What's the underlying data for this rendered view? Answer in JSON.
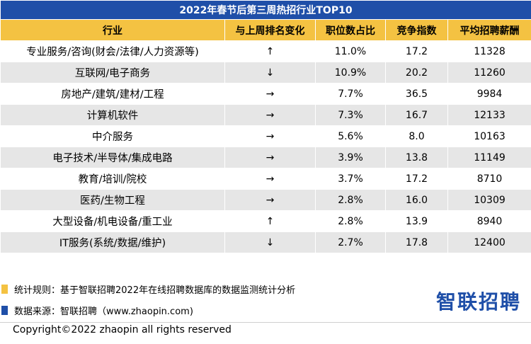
{
  "table": {
    "title": "2022年春节后第三周热招行业TOP10",
    "headers": [
      "行业",
      "与上周排名变化",
      "职位数占比",
      "竞争指数",
      "平均招聘薪酬"
    ],
    "rows": [
      [
        "专业服务/咨询(财会/法律/人力资源等)",
        "↑",
        "11.0%",
        "17.2",
        "11328"
      ],
      [
        "互联网/电子商务",
        "↓",
        "10.9%",
        "20.2",
        "11260"
      ],
      [
        "房地产/建筑/建材/工程",
        "→",
        "7.7%",
        "36.5",
        "9984"
      ],
      [
        "计算机软件",
        "→",
        "7.3%",
        "16.7",
        "12133"
      ],
      [
        "中介服务",
        "→",
        "5.6%",
        "8.0",
        "10163"
      ],
      [
        "电子技术/半导体/集成电路",
        "→",
        "3.9%",
        "13.8",
        "11149"
      ],
      [
        "教育/培训/院校",
        "→",
        "3.7%",
        "17.2",
        "8710"
      ],
      [
        "医药/生物工程",
        "→",
        "2.8%",
        "16.0",
        "10309"
      ],
      [
        "大型设备/机电设备/重工业",
        "↑",
        "2.8%",
        "13.9",
        "8940"
      ],
      [
        "IT服务(系统/数据/维护)",
        "↓",
        "2.7%",
        "17.8",
        "12400"
      ]
    ]
  },
  "notes": {
    "rule": "统计规则：基于智联招聘2022年在线招聘数据库的数据监测统计分析",
    "source": "数据来源：智联招聘（www.zhaopin.com)"
  },
  "logo": "智联招聘",
  "copyright": "Copyright©2022 zhaopin all rights reserved",
  "colors": {
    "header_blue": "#1f4fa8",
    "header_yellow": "#f4c242",
    "stripe_gray": "#e6e6e6"
  }
}
